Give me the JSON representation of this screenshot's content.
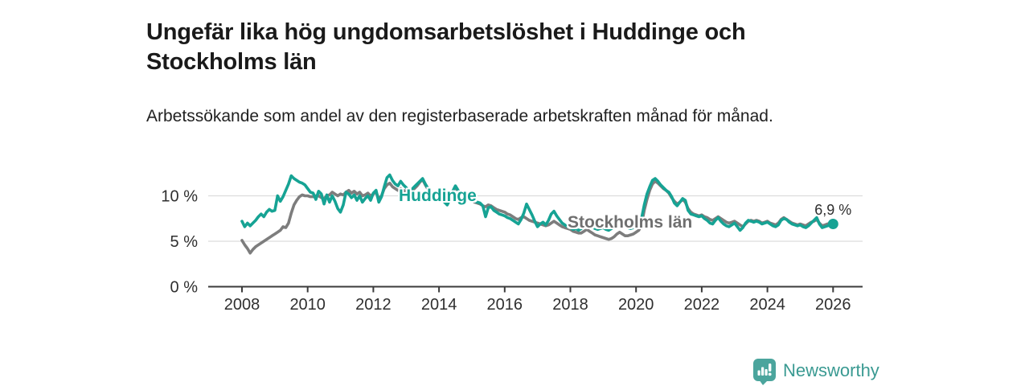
{
  "header": {
    "title": "Ungefär lika hög ungdomsarbetslöshet i Huddinge och Stockholms län",
    "subtitle": "Arbetssökande som andel av den registerbaserade arbetskraften månad för månad."
  },
  "footer": {
    "brand": "Newsworthy"
  },
  "colors": {
    "huddinge": "#16a394",
    "stockholm": "#7d7d7d",
    "axis": "#3b3b3b",
    "grid": "#dcdcdc",
    "tick_text": "#2f2f2f",
    "end_label_text": "#2d2d2d",
    "logo": "#4ba59d",
    "logo_text": "#3a9a92"
  },
  "chart_data": {
    "type": "line",
    "title": "Ungefär lika hög ungdomsarbetslöshet i Huddinge och Stockholms län",
    "subtitle": "Arbetssökande som andel av den registerbaserade arbetskraften månad för månad.",
    "x_start": "2008-01",
    "x_end": "2026-01",
    "x_interval": "monthly",
    "x_ticks": [
      "2008",
      "2010",
      "2012",
      "2014",
      "2016",
      "2018",
      "2020",
      "2022",
      "2024",
      "2026"
    ],
    "y_ticks": [
      {
        "value": 0,
        "label": "0 %"
      },
      {
        "value": 5,
        "label": "5 %"
      },
      {
        "value": 10,
        "label": "10 %"
      }
    ],
    "ylim": [
      0,
      13
    ],
    "grid": true,
    "legend_position": "inline-labels",
    "end_label": "6,9 %",
    "end_value": 6.9,
    "series": [
      {
        "name": "Huddinge",
        "color": "#16a394",
        "values": [
          7.2,
          6.6,
          7.0,
          6.7,
          7.0,
          7.3,
          7.7,
          8.0,
          7.7,
          8.2,
          8.5,
          8.3,
          8.4,
          10.0,
          9.4,
          9.9,
          10.6,
          11.3,
          12.2,
          11.9,
          11.7,
          11.5,
          11.4,
          11.2,
          10.8,
          10.4,
          10.3,
          9.6,
          10.5,
          10.2,
          9.1,
          10.1,
          9.3,
          10.0,
          9.4,
          8.6,
          8.2,
          9.0,
          10.4,
          10.2,
          9.8,
          10.1,
          9.5,
          10.0,
          9.3,
          9.7,
          10.0,
          9.5,
          10.3,
          10.6,
          9.3,
          9.9,
          11.0,
          12.0,
          12.3,
          11.7,
          11.3,
          11.1,
          11.6,
          11.2,
          10.9,
          10.5,
          10.7,
          11.0,
          11.3,
          11.6,
          11.9,
          11.3,
          10.8,
          10.5,
          10.2,
          10.1,
          10.0,
          9.6,
          9.3,
          9.0,
          9.6,
          10.5,
          11.1,
          10.6,
          10.2,
          9.9,
          9.7,
          9.6,
          9.5,
          9.4,
          9.3,
          9.2,
          8.9,
          7.7,
          8.7,
          8.8,
          8.4,
          8.2,
          8.0,
          7.9,
          7.8,
          7.6,
          7.5,
          7.3,
          7.1,
          6.9,
          7.4,
          8.1,
          9.1,
          8.5,
          7.9,
          7.2,
          6.6,
          6.9,
          7.1,
          6.8,
          7.3,
          8.0,
          8.3,
          7.8,
          7.4,
          7.0,
          6.8,
          6.6,
          6.5,
          6.3,
          6.4,
          6.2,
          6.4,
          6.9,
          7.2,
          6.8,
          6.6,
          6.4,
          6.3,
          6.4,
          6.5,
          6.3,
          6.2,
          6.4,
          6.7,
          7.2,
          7.4,
          7.0,
          6.7,
          6.5,
          6.4,
          6.5,
          6.6,
          6.9,
          7.5,
          9.0,
          10.2,
          11.0,
          11.7,
          11.9,
          11.6,
          11.2,
          10.9,
          10.6,
          10.4,
          9.9,
          9.2,
          8.9,
          9.3,
          9.7,
          9.5,
          8.4,
          8.0,
          7.9,
          7.8,
          7.7,
          7.8,
          7.5,
          7.3,
          7.0,
          6.9,
          7.3,
          7.6,
          7.2,
          6.9,
          6.7,
          6.6,
          6.8,
          7.0,
          6.6,
          6.2,
          6.5,
          7.0,
          7.3,
          7.2,
          7.1,
          7.2,
          7.1,
          6.9,
          7.0,
          7.1,
          6.9,
          6.7,
          6.6,
          6.8,
          7.3,
          7.5,
          7.4,
          7.1,
          6.9,
          6.8,
          6.7,
          6.8,
          6.6,
          6.5,
          6.7,
          7.0,
          7.3,
          7.6,
          6.9,
          6.5,
          6.6,
          6.7,
          6.8,
          6.9
        ]
      },
      {
        "name": "Stockholms län",
        "color": "#7d7d7d",
        "values": [
          5.1,
          4.6,
          4.2,
          3.7,
          4.1,
          4.4,
          4.6,
          4.8,
          5.0,
          5.2,
          5.4,
          5.6,
          5.8,
          6.0,
          6.2,
          6.6,
          6.5,
          7.0,
          8.1,
          9.0,
          9.5,
          9.9,
          10.1,
          10.0,
          10.0,
          9.9,
          9.9,
          10.0,
          10.0,
          9.8,
          9.7,
          10.0,
          10.1,
          10.4,
          10.2,
          10.0,
          10.2,
          10.1,
          10.4,
          10.6,
          10.3,
          10.5,
          10.2,
          10.4,
          10.0,
          10.1,
          10.3,
          10.0,
          10.2,
          10.4,
          9.7,
          10.0,
          10.8,
          11.2,
          11.4,
          11.0,
          10.8,
          10.6,
          10.8,
          10.6,
          10.5,
          10.3,
          10.5,
          10.8,
          11.1,
          11.5,
          11.8,
          11.2,
          10.7,
          10.4,
          10.1,
          10.0,
          10.0,
          9.7,
          9.4,
          9.2,
          9.6,
          10.3,
          10.8,
          10.4,
          10.0,
          9.8,
          9.6,
          9.5,
          9.5,
          9.3,
          9.2,
          9.1,
          8.9,
          8.8,
          9.0,
          8.9,
          8.7,
          8.5,
          8.4,
          8.3,
          8.2,
          8.0,
          7.9,
          7.7,
          7.5,
          7.4,
          7.6,
          7.7,
          7.5,
          7.3,
          7.2,
          7.1,
          7.0,
          6.9,
          6.8,
          6.7,
          6.8,
          7.0,
          7.2,
          7.0,
          6.8,
          6.6,
          6.5,
          6.4,
          6.3,
          6.1,
          6.0,
          5.9,
          5.9,
          6.1,
          6.3,
          6.1,
          5.9,
          5.7,
          5.6,
          5.5,
          5.4,
          5.3,
          5.2,
          5.3,
          5.5,
          5.8,
          6.0,
          5.8,
          5.6,
          5.6,
          5.7,
          5.8,
          6.0,
          6.2,
          6.8,
          8.4,
          9.6,
          10.6,
          11.3,
          11.6,
          11.4,
          11.1,
          10.8,
          10.6,
          10.3,
          9.8,
          9.4,
          9.1,
          9.3,
          9.6,
          9.3,
          8.6,
          8.2,
          8.0,
          7.9,
          7.8,
          7.9,
          7.7,
          7.6,
          7.4,
          7.3,
          7.5,
          7.7,
          7.5,
          7.3,
          7.1,
          7.0,
          7.1,
          7.2,
          7.0,
          6.8,
          6.6,
          6.9,
          7.2,
          7.3,
          7.2,
          7.3,
          7.2,
          7.0,
          7.1,
          7.2,
          7.0,
          6.9,
          6.8,
          7.0,
          7.4,
          7.6,
          7.4,
          7.2,
          7.0,
          6.9,
          6.8,
          6.9,
          6.8,
          6.7,
          6.9,
          7.1,
          7.2,
          7.4,
          7.0,
          6.7,
          6.8,
          6.9,
          7.0,
          7.0
        ]
      }
    ]
  }
}
